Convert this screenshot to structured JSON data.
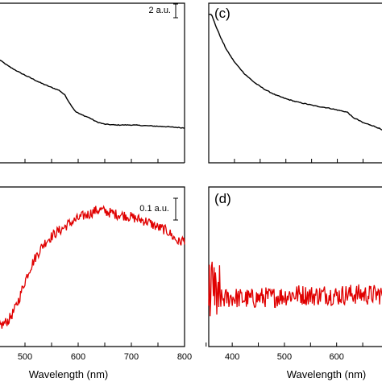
{
  "chart_data": [
    {
      "panel": "a",
      "type": "line",
      "panel_label": "",
      "scale_bar_label": "2 a.u.",
      "color": "#000000",
      "xlim": [
        450,
        800
      ],
      "ylim": [
        0,
        10
      ],
      "x": [
        450,
        470,
        490,
        510,
        530,
        550,
        565,
        575,
        585,
        595,
        605,
        620,
        635,
        650,
        670,
        700,
        730,
        760,
        800
      ],
      "y": [
        6.6,
        6.1,
        5.7,
        5.35,
        5.0,
        4.7,
        4.5,
        4.2,
        3.6,
        3.1,
        2.9,
        2.7,
        2.4,
        2.25,
        2.2,
        2.2,
        2.15,
        2.1,
        2.0
      ]
    },
    {
      "panel": "c",
      "type": "line",
      "panel_label": "(c)",
      "color": "#000000",
      "xlim": [
        350,
        690
      ],
      "ylim": [
        0,
        10
      ],
      "x": [
        355,
        365,
        375,
        385,
        400,
        420,
        440,
        460,
        480,
        500,
        520,
        540,
        560,
        580,
        600,
        620,
        630,
        640,
        650,
        665,
        680,
        690
      ],
      "y": [
        9.6,
        8.7,
        7.9,
        7.2,
        6.4,
        5.6,
        5.0,
        4.55,
        4.2,
        3.95,
        3.75,
        3.6,
        3.45,
        3.35,
        3.2,
        3.05,
        2.7,
        2.55,
        2.35,
        2.2,
        2.0,
        1.8
      ]
    },
    {
      "panel": "b",
      "type": "line",
      "panel_label": "",
      "scale_bar_label": "0.1 a.u.",
      "color": "#e00000",
      "xtick_labels": [
        "500",
        "600",
        "700",
        "800"
      ],
      "xticks": [
        450,
        500,
        550,
        600,
        650,
        700,
        750,
        800
      ],
      "xlabel": "Wavelength (nm)",
      "xlim": [
        450,
        800
      ],
      "ylim": [
        0,
        10
      ],
      "x": [
        450,
        460,
        470,
        480,
        490,
        500,
        510,
        520,
        530,
        540,
        550,
        560,
        570,
        580,
        590,
        600,
        610,
        620,
        630,
        640,
        650,
        660,
        670,
        680,
        690,
        700,
        710,
        720,
        730,
        740,
        750,
        760,
        770,
        780,
        790,
        800
      ],
      "y": [
        1.0,
        1.2,
        1.5,
        2.1,
        3.0,
        4.1,
        5.0,
        5.7,
        6.3,
        6.8,
        7.1,
        7.4,
        7.6,
        7.9,
        8.1,
        8.3,
        8.5,
        8.6,
        8.8,
        8.9,
        8.8,
        8.7,
        8.6,
        8.55,
        8.5,
        8.4,
        8.3,
        8.2,
        8.1,
        7.9,
        7.7,
        7.6,
        7.4,
        7.0,
        6.7,
        6.9
      ]
    },
    {
      "panel": "d",
      "type": "line",
      "panel_label": "(d)",
      "color": "#e00000",
      "xtick_labels": [
        "400",
        "500",
        "600"
      ],
      "xticks": [
        350,
        400,
        450,
        500,
        550,
        600,
        650
      ],
      "xlabel": "Wavelength (nm)",
      "xlim": [
        355,
        690
      ],
      "ylim": [
        0,
        10
      ],
      "x": [
        355,
        365,
        375,
        385,
        400,
        420,
        440,
        460,
        480,
        500,
        520,
        540,
        560,
        580,
        600,
        620,
        640,
        660,
        690
      ],
      "y": [
        2.7,
        2.9,
        2.8,
        2.9,
        3.0,
        2.9,
        2.9,
        3.0,
        3.0,
        3.1,
        3.2,
        3.15,
        3.1,
        3.2,
        3.1,
        3.2,
        3.2,
        3.15,
        3.2
      ]
    }
  ]
}
